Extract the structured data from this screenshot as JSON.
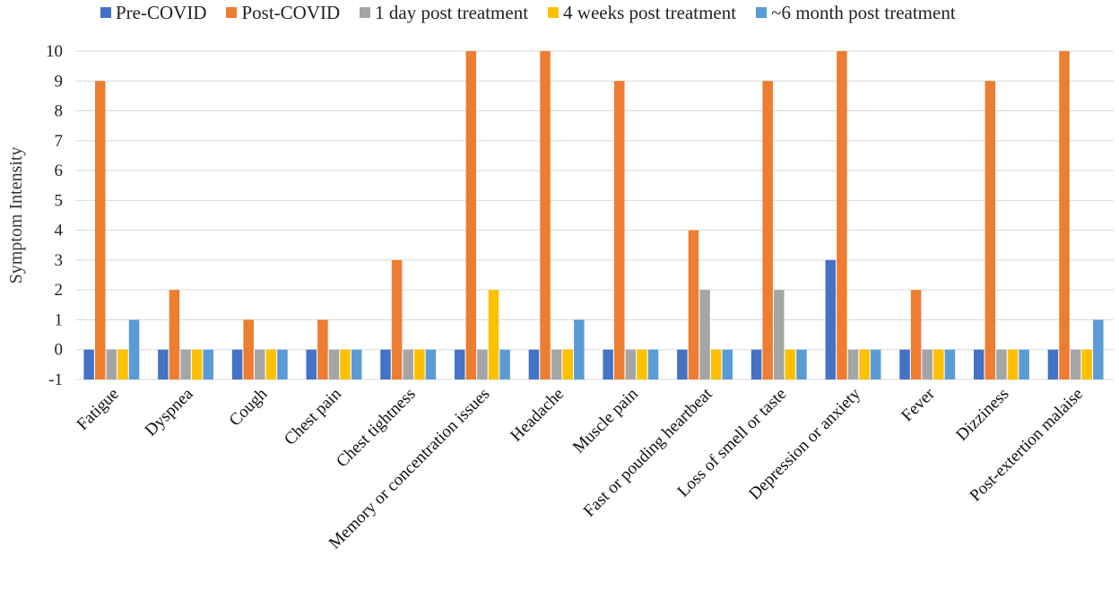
{
  "chart_data": {
    "type": "bar",
    "title": "",
    "xlabel": "",
    "ylabel": "Symptom Intensity",
    "ylim": [
      -1,
      10
    ],
    "yticks": [
      "-1",
      "0",
      "1",
      "2",
      "3",
      "4",
      "5",
      "6",
      "7",
      "8",
      "9",
      "10"
    ],
    "grid": true,
    "legend_position": "top",
    "categories": [
      "Fatigue",
      "Dyspnea",
      "Cough",
      "Chest pain",
      "Chest tightness",
      "Memory or concentration issues",
      "Headache",
      "Muscle pain",
      "Fast or pouding heartbeat",
      "Loss of smell or taste",
      "Depression or anxiety",
      "Fever",
      "Dizziness",
      "Post-extertion malaise"
    ],
    "series": [
      {
        "name": "Pre-COVID",
        "color": "#4472C4",
        "values": [
          0,
          0,
          0,
          0,
          0,
          0,
          0,
          0,
          0,
          0,
          3,
          0,
          0,
          0
        ]
      },
      {
        "name": "Post-COVID",
        "color": "#ED7D31",
        "values": [
          9,
          2,
          1,
          1,
          3,
          10,
          10,
          9,
          4,
          9,
          10,
          2,
          9,
          10
        ]
      },
      {
        "name": "1 day post treatment",
        "color": "#A5A5A5",
        "values": [
          0,
          0,
          0,
          0,
          0,
          0,
          0,
          0,
          2,
          2,
          0,
          0,
          0,
          0
        ]
      },
      {
        "name": "4 weeks post treatment",
        "color": "#FFC000",
        "values": [
          0,
          0,
          0,
          0,
          0,
          2,
          0,
          0,
          0,
          0,
          0,
          0,
          0,
          0
        ]
      },
      {
        "name": "~6 month post treatment",
        "color": "#5B9BD5",
        "values": [
          1,
          0,
          0,
          0,
          0,
          0,
          1,
          0,
          0,
          0,
          0,
          0,
          0,
          1
        ]
      }
    ]
  }
}
